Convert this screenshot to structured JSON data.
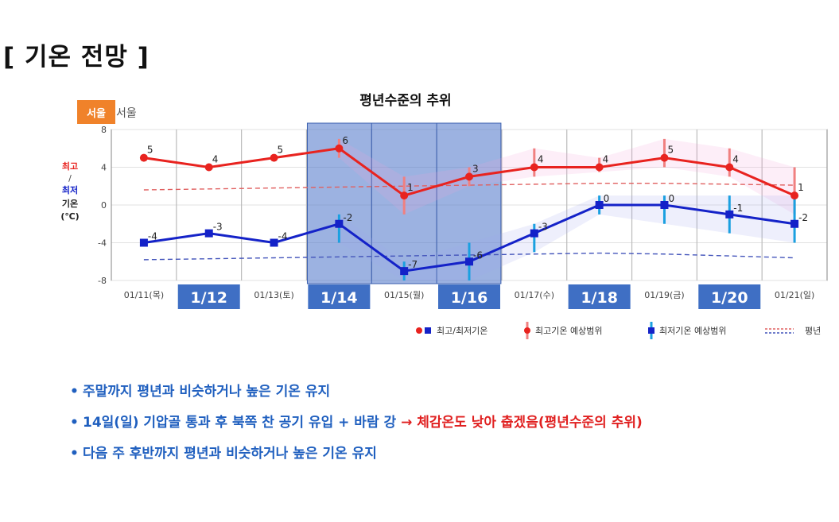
{
  "page": {
    "title": "[ 기온 전망 ]"
  },
  "region": {
    "badge": "서울",
    "label": "서울"
  },
  "y_label": {
    "max": "최고",
    "sep": "/",
    "min": "최저",
    "temp": "기온",
    "unit": "(℃)"
  },
  "colors": {
    "max_line": "#e8231f",
    "min_line": "#1422c8",
    "max_range": "#f08080",
    "min_range": "#1aa0e0",
    "highlight": "#4a72c8",
    "date_box": "#3f6fc4",
    "avg_max": "#e06060",
    "avg_min": "#4455bb"
  },
  "chart_data": {
    "type": "line",
    "title": "평년수준의 추위",
    "x": [
      "01/11(목)",
      "1/12",
      "01/13(토)",
      "1/14",
      "01/15(월)",
      "1/16",
      "01/17(수)",
      "1/18",
      "01/19(금)",
      "1/20",
      "01/21(일)"
    ],
    "ylim": [
      -8,
      8
    ],
    "yticks": [
      8,
      4,
      0,
      -4,
      -8
    ],
    "grid": true,
    "highlight_range": [
      "1/14",
      "1/16"
    ],
    "series": [
      {
        "name": "최고/최저기온",
        "kind": "max",
        "values": [
          5,
          4,
          5,
          6,
          1,
          3,
          4,
          4,
          5,
          4,
          1
        ],
        "range_low": [
          null,
          null,
          null,
          5,
          -1,
          2,
          3,
          3.5,
          4,
          3,
          -1
        ],
        "range_high": [
          null,
          null,
          null,
          7,
          3,
          4,
          6,
          5,
          7,
          6,
          4
        ]
      },
      {
        "name": "최고/최저기온",
        "kind": "min",
        "values": [
          -4,
          -3,
          -4,
          -2,
          -7,
          -6,
          -3,
          0,
          0,
          -1,
          -2
        ],
        "range_low": [
          null,
          null,
          null,
          -4,
          -8,
          -8,
          -5,
          -1,
          -2,
          -3,
          -4
        ],
        "range_high": [
          null,
          null,
          null,
          -1,
          -6,
          -4,
          -2,
          1,
          1,
          1,
          1
        ]
      },
      {
        "name": "평년",
        "kind": "avg_max",
        "values": [
          1.6,
          1.7,
          1.8,
          1.9,
          2.0,
          2.1,
          2.2,
          2.3,
          2.3,
          2.2,
          2.1
        ]
      },
      {
        "name": "평년",
        "kind": "avg_min",
        "values": [
          -5.8,
          -5.7,
          -5.6,
          -5.5,
          -5.4,
          -5.3,
          -5.2,
          -5.1,
          -5.2,
          -5.4,
          -5.6
        ]
      }
    ],
    "legend": [
      {
        "label": "최고/최저기온",
        "kind": "points"
      },
      {
        "label": "최고기온 예상범위",
        "kind": "max_range"
      },
      {
        "label": "최저기온 예상범위",
        "kind": "min_range"
      },
      {
        "label": "평년",
        "kind": "avg"
      }
    ],
    "legend_position": "bottom-right"
  },
  "bullets": [
    {
      "text": "주말까지 평년과 비슷하거나 높은 기온 유지",
      "extra": ""
    },
    {
      "text": "14일(일) 기압골 통과 후 북쪽 찬 공기 유입 + 바람 강",
      "extra": "→ 체감온도 낮아 춥겠음(평년수준의 추위)"
    },
    {
      "text": "다음 주 후반까지 평년과 비슷하거나 높은 기온 유지",
      "extra": ""
    }
  ]
}
